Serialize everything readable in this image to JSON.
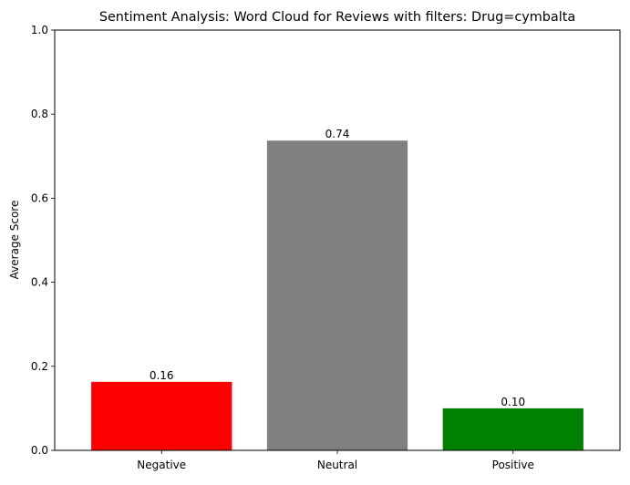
{
  "chart_data": {
    "type": "bar",
    "title": "Sentiment Analysis: Word Cloud for Reviews with filters: Drug=cymbalta",
    "xlabel": "",
    "ylabel": "Average Score",
    "ylim": [
      0,
      1
    ],
    "yticks": [
      {
        "value": 0.0,
        "label": "0.0"
      },
      {
        "value": 0.2,
        "label": "0.2"
      },
      {
        "value": 0.4,
        "label": "0.4"
      },
      {
        "value": 0.6,
        "label": "0.6"
      },
      {
        "value": 0.8,
        "label": "0.8"
      },
      {
        "value": 1.0,
        "label": "1.0"
      }
    ],
    "categories": [
      "Negative",
      "Neutral",
      "Positive"
    ],
    "values": [
      0.163,
      0.737,
      0.1
    ],
    "value_labels": [
      "0.16",
      "0.74",
      "0.10"
    ],
    "colors": [
      "#ff0000",
      "#808080",
      "#008000"
    ],
    "grid": false,
    "legend": "none"
  }
}
